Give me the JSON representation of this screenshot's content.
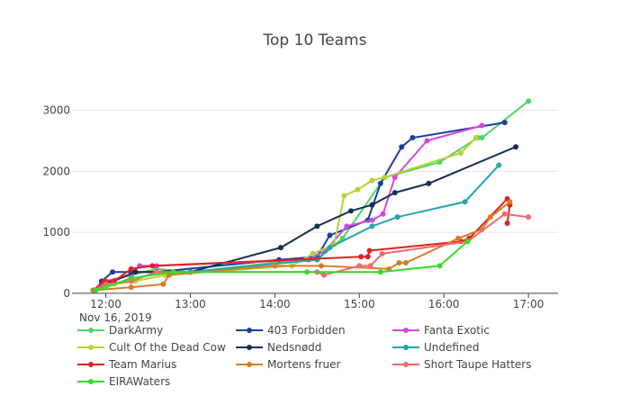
{
  "chart_data": {
    "type": "line",
    "title": "Top 10 Teams",
    "x_date_label": "Nov 16, 2019",
    "x_ticks": [
      "12:00",
      "13:00",
      "14:00",
      "15:00",
      "16:00",
      "17:00"
    ],
    "y_ticks": [
      "0",
      "1000",
      "2000",
      "3000"
    ],
    "xlim": [
      11.6,
      17.35
    ],
    "ylim": [
      -60,
      3480
    ],
    "series": [
      {
        "name": "DarkArmy",
        "color": "#4fd36b",
        "x": [
          11.85,
          12.0,
          12.3,
          12.6,
          13.0,
          14.3,
          14.5,
          14.8,
          15.3,
          15.95,
          16.4,
          16.45,
          17.0
        ],
        "y": [
          50,
          200,
          300,
          400,
          350,
          550,
          550,
          900,
          1900,
          2150,
          2550,
          2550,
          3150
        ]
      },
      {
        "name": "403 Forbidden",
        "color": "#1c3f95",
        "x": [
          11.88,
          11.95,
          12.08,
          12.3,
          12.6,
          14.05,
          14.5,
          14.65,
          15.1,
          15.25,
          15.5,
          15.63,
          16.72
        ],
        "y": [
          50,
          200,
          350,
          350,
          350,
          550,
          600,
          950,
          1200,
          1800,
          2400,
          2550,
          2800
        ]
      },
      {
        "name": "Fanta Exotic",
        "color": "#d447e0",
        "x": [
          11.85,
          12.0,
          12.3,
          12.4,
          12.6,
          14.4,
          14.6,
          14.85,
          15.15,
          15.28,
          15.42,
          15.8,
          16.45
        ],
        "y": [
          50,
          200,
          300,
          450,
          450,
          550,
          700,
          1100,
          1200,
          1300,
          1900,
          2500,
          2750
        ]
      },
      {
        "name": "Cult Of the Dead Cow",
        "color": "#b5d335",
        "x": [
          11.85,
          12.1,
          12.35,
          12.7,
          14.2,
          14.45,
          14.7,
          14.82,
          14.98,
          15.15,
          15.3,
          16.2,
          16.38
        ],
        "y": [
          50,
          150,
          200,
          300,
          450,
          650,
          800,
          1600,
          1700,
          1850,
          1900,
          2300,
          2550
        ]
      },
      {
        "name": "Nedsnødd",
        "color": "#152f4f",
        "x": [
          11.85,
          12.0,
          12.35,
          13.0,
          14.07,
          14.5,
          14.9,
          15.15,
          15.42,
          15.82,
          16.85
        ],
        "y": [
          50,
          150,
          350,
          350,
          750,
          1100,
          1350,
          1450,
          1650,
          1800,
          2400
        ]
      },
      {
        "name": "Undefined",
        "color": "#1fa8a6",
        "x": [
          11.85,
          12.0,
          12.3,
          12.6,
          13.0,
          14.5,
          14.65,
          15.15,
          15.45,
          16.25,
          16.65
        ],
        "y": [
          50,
          150,
          200,
          350,
          350,
          550,
          750,
          1100,
          1250,
          1500,
          2100
        ]
      },
      {
        "name": "Team Marius",
        "color": "#e02121",
        "x": [
          11.85,
          11.98,
          12.1,
          12.3,
          12.55,
          15.02,
          15.1,
          15.12,
          16.2,
          16.3,
          16.75,
          16.78,
          16.75
        ],
        "y": [
          50,
          200,
          200,
          400,
          450,
          600,
          600,
          700,
          850,
          900,
          1550,
          1450,
          1150
        ]
      },
      {
        "name": "Mortens fruer",
        "color": "#d67e23",
        "x": [
          11.85,
          12.3,
          12.68,
          12.75,
          14.0,
          14.55,
          15.35,
          15.47,
          15.55,
          16.17,
          16.45,
          16.55,
          16.78
        ],
        "y": [
          50,
          100,
          150,
          300,
          450,
          450,
          400,
          500,
          500,
          900,
          1050,
          1250,
          1500
        ]
      },
      {
        "name": "Short Taupe Hatters",
        "color": "#ee6b6e",
        "x": [
          11.85,
          12.0,
          12.3,
          12.6,
          14.5,
          14.58,
          15.0,
          15.13,
          15.27,
          16.28,
          16.72,
          17.0
        ],
        "y": [
          50,
          150,
          200,
          350,
          350,
          300,
          450,
          450,
          650,
          850,
          1300,
          1250
        ]
      },
      {
        "name": "EIRAWaters",
        "color": "#33dd23",
        "x": [
          11.88,
          12.0,
          12.3,
          12.8,
          14.38,
          15.25,
          15.95,
          16.28
        ],
        "y": [
          50,
          100,
          250,
          350,
          350,
          350,
          450,
          850
        ]
      }
    ]
  }
}
